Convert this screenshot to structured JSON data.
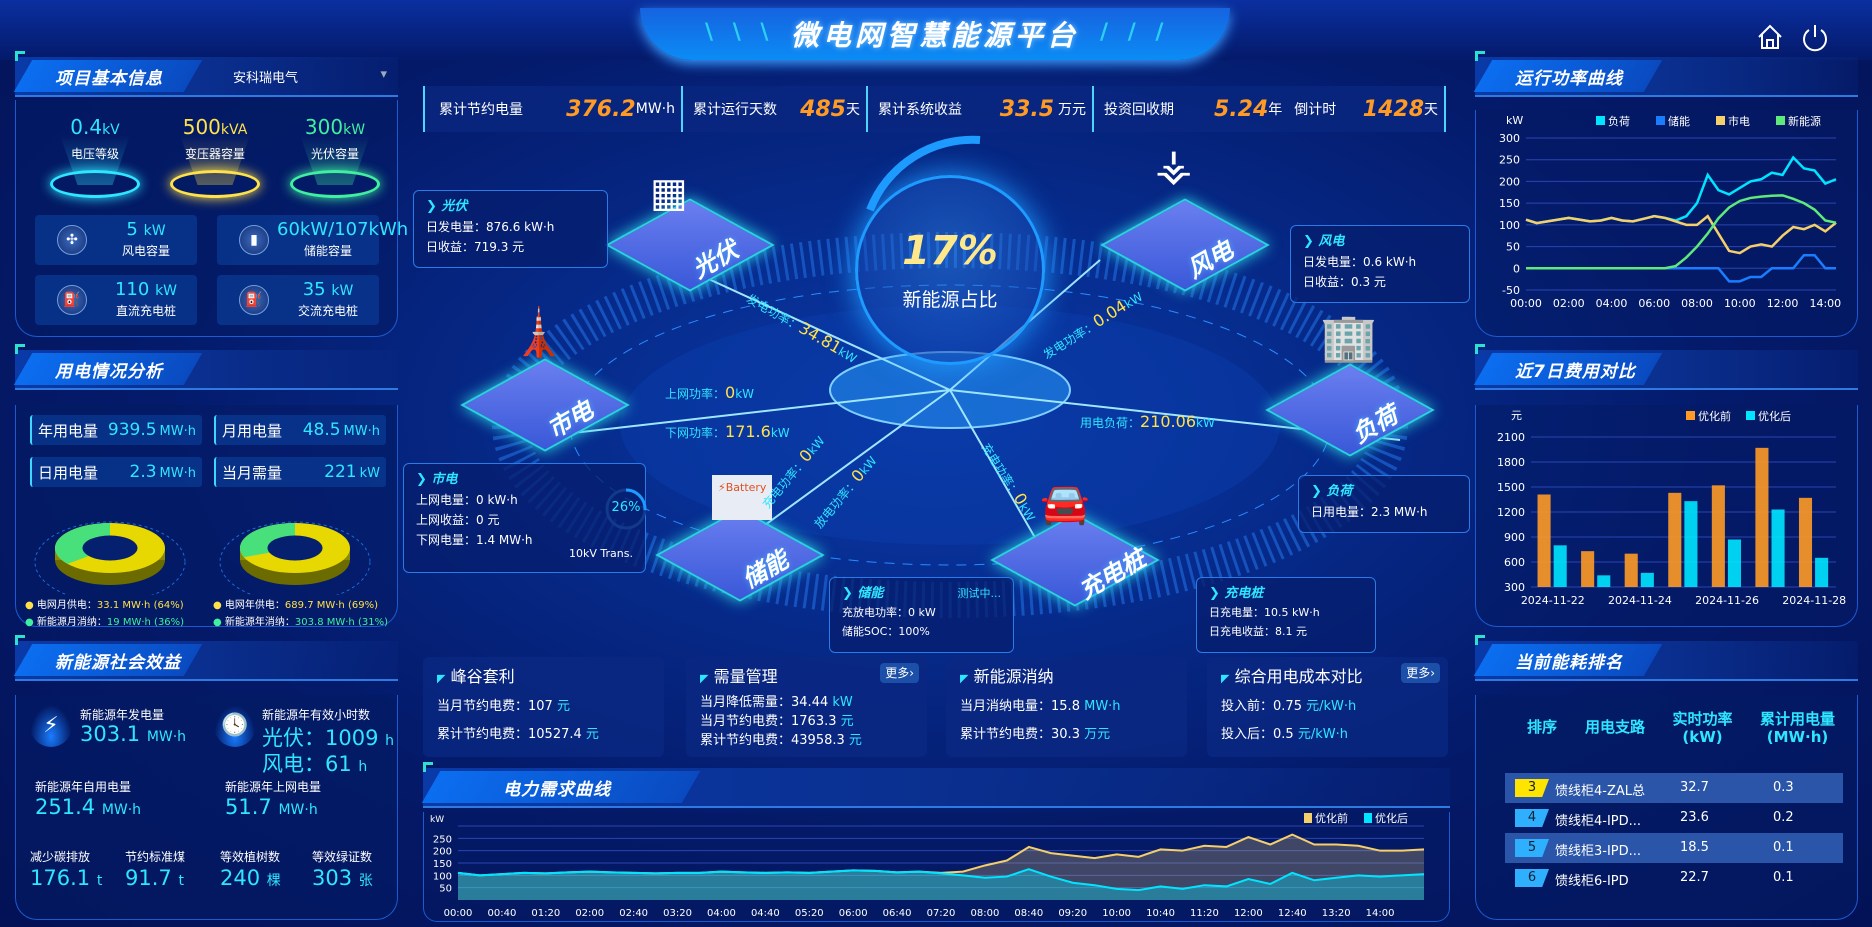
{
  "header": {
    "title": "微电网智慧能源平台",
    "home_icon": "home-icon",
    "power_icon": "power-icon"
  },
  "stats": [
    {
      "label": "累计节约电量",
      "value": "376.2",
      "unit": "MW·h"
    },
    {
      "label": "累计运行天数",
      "value": "485",
      "unit": "天"
    },
    {
      "label": "累计系统收益",
      "value": "33.5",
      "unit": "万元"
    },
    {
      "label": "投资回收期",
      "value": "5.24",
      "unit": "年"
    },
    {
      "label": "倒计时",
      "value": "1428",
      "unit": "天"
    }
  ],
  "project": {
    "title": "项目基本信息",
    "selector": "安科瑞电气",
    "tops": [
      {
        "value": "0.4",
        "unit": "kV",
        "label": "电压等级",
        "color": "#2ee6ff"
      },
      {
        "value": "500",
        "unit": "kVA",
        "label": "变压器容量",
        "color": "#ffe14a"
      },
      {
        "value": "300",
        "unit": "kW",
        "label": "光伏容量",
        "color": "#3ff0a0"
      }
    ],
    "caps": [
      {
        "value": "5",
        "unit": "kW",
        "label": "风电容量",
        "icon": "wind-turbine-icon"
      },
      {
        "value": "60kW/107kWh",
        "unit": "",
        "label": "储能容量",
        "icon": "battery-icon"
      },
      {
        "value": "110",
        "unit": "kW",
        "label": "直流充电桩",
        "icon": "charger-icon"
      },
      {
        "value": "35",
        "unit": "kW",
        "label": "交流充电桩",
        "icon": "charger-icon"
      }
    ]
  },
  "usage": {
    "title": "用电情况分析",
    "kvs": [
      {
        "label": "年用电量",
        "value": "939.5",
        "unit": "MW·h"
      },
      {
        "label": "月用电量",
        "value": "48.5",
        "unit": "MW·h"
      },
      {
        "label": "日用电量",
        "value": "2.3",
        "unit": "MW·h"
      },
      {
        "label": "当月需量",
        "value": "221",
        "unit": "kW"
      }
    ],
    "donuts": [
      {
        "grid_pct": 64,
        "new_pct": 36
      },
      {
        "grid_pct": 69,
        "new_pct": 31
      }
    ],
    "legend": [
      {
        "label": "电网月供电：",
        "value": "33.1 MW·h (64%)",
        "color": "#ffe14a"
      },
      {
        "label": "电网年供电：",
        "value": "689.7 MW·h (69%)",
        "color": "#ffe14a"
      },
      {
        "label": "新能源月消纳：",
        "value": "19 MW·h (36%)",
        "color": "#3ff0a0"
      },
      {
        "label": "新能源年消纳：",
        "value": "303.8 MW·h (31%)",
        "color": "#3ff0a0"
      }
    ]
  },
  "social": {
    "title": "新能源社会效益",
    "items": [
      {
        "label": "新能源年发电量",
        "value": "303.1",
        "unit": "MW·h"
      },
      {
        "label": "新能源年有效小时数",
        "value": "光伏：1009",
        "unit": "h",
        "value2": "风电：61",
        "unit2": "h"
      },
      {
        "label": "新能源年自用电量",
        "value": "251.4",
        "unit": "MW·h"
      },
      {
        "label": "新能源年上网电量",
        "value": "51.7",
        "unit": "MW·h"
      },
      {
        "label": "减少碳排放",
        "value": "176.1",
        "unit": "t"
      },
      {
        "label": "节约标准煤",
        "value": "91.7",
        "unit": "t"
      },
      {
        "label": "等效植树数",
        "value": "240",
        "unit": "棵"
      },
      {
        "label": "等效绿证数",
        "value": "303",
        "unit": "张"
      }
    ]
  },
  "center": {
    "ratio": "17%",
    "ratio_label": "新能源占比",
    "nodes": {
      "pv": "光伏",
      "wind": "风电",
      "grid": "市电",
      "load": "负荷",
      "storage": "储能",
      "charger": "充电桩"
    },
    "flows": {
      "pv": {
        "label": "发电功率：",
        "value": "34.81",
        "unit": "kW"
      },
      "grid_up": {
        "label": "上网功率：",
        "value": "0",
        "unit": "kW"
      },
      "grid_down": {
        "label": "下网功率：",
        "value": "171.6",
        "unit": "kW"
      },
      "st_charge": {
        "label": "充电功率：",
        "value": "0",
        "unit": "kW"
      },
      "st_discharge": {
        "label": "放电功率：",
        "value": "0",
        "unit": "kW"
      },
      "wind": {
        "label": "发电功率：",
        "value": "0.04",
        "unit": "kW"
      },
      "load": {
        "label": "用电负荷：",
        "value": "210.06",
        "unit": "kW"
      },
      "charger": {
        "label": "充电功率：",
        "value": "0",
        "unit": "kW"
      }
    },
    "transformer": {
      "pct": "26%",
      "label": "10kV Trans.",
      "fraction": 0.26
    },
    "boxes": {
      "pv": {
        "title": "光伏",
        "lines": [
          "日发电量：876.6 kW·h",
          "日收益：719.3 元"
        ]
      },
      "wind": {
        "title": "风电",
        "lines": [
          "日发电量：0.6 kW·h",
          "日收益：0.3 元"
        ]
      },
      "grid": {
        "title": "市电",
        "lines": [
          "上网电量：0 kW·h",
          "上网收益：0 元",
          "下网电量：1.4 MW·h"
        ]
      },
      "load": {
        "title": "负荷",
        "lines": [
          "日用电量：2.3 MW·h"
        ]
      },
      "storage": {
        "title": "储能",
        "status": "测试中...",
        "lines": [
          "充放电功率：0 kW",
          "储能SOC：100%"
        ]
      },
      "charger": {
        "title": "充电桩",
        "lines": [
          "日充电量：10.5 kW·h",
          "日充电收益：8.1 元"
        ]
      }
    }
  },
  "cards": [
    {
      "title": "峰谷套利",
      "rows": [
        {
          "label": "当月节约电费：",
          "value": "107",
          "unit": "元"
        },
        {
          "label": "累计节约电费：",
          "value": "10527.4",
          "unit": "元"
        }
      ]
    },
    {
      "title": "需量管理",
      "more": "更多›",
      "rows": [
        {
          "label": "当月降低需量：",
          "value": "34.44",
          "unit": "kW"
        },
        {
          "label": "当月节约电费：",
          "value": "1763.3",
          "unit": "元"
        },
        {
          "label": "累计节约电费：",
          "value": "43958.3",
          "unit": "元"
        }
      ]
    },
    {
      "title": "新能源消纳",
      "rows": [
        {
          "label": "当月消纳电量：",
          "value": "15.8",
          "unit": "MW·h"
        },
        {
          "label": "累计节约电费：",
          "value": "30.3",
          "unit": "万元"
        }
      ]
    },
    {
      "title": "综合用电成本对比",
      "more": "更多›",
      "rows": [
        {
          "label": "投入前：",
          "value": "0.75",
          "unit": "元/kW·h"
        },
        {
          "label": "投入后：",
          "value": "0.5",
          "unit": "元/kW·h"
        }
      ]
    }
  ],
  "ranking": {
    "title": "当前能耗排名",
    "headers": [
      "排序",
      "用电支路",
      "实时功率\n(kW)",
      "累计用电量\n(MW·h)"
    ],
    "rows": [
      {
        "rank": "3",
        "name": "馈线柜4-ZAL总",
        "power": "32.7",
        "energy": "0.3",
        "color": "#ffe400"
      },
      {
        "rank": "4",
        "name": "馈线柜4-IPD...",
        "power": "23.6",
        "energy": "0.2",
        "color": "#2fb0ff"
      },
      {
        "rank": "5",
        "name": "馈线柜3-IPD...",
        "power": "18.5",
        "energy": "0.1",
        "color": "#2fb0ff"
      },
      {
        "rank": "6",
        "name": "馈线柜6-IPD",
        "power": "22.7",
        "energy": "0.1",
        "color": "#2fb0ff"
      }
    ]
  },
  "chart_data": [
    {
      "id": "power",
      "title": "运行功率曲线",
      "type": "line",
      "ylabel": "kW",
      "ylim": [
        -50,
        300
      ],
      "yticks": [
        -50,
        0,
        50,
        100,
        150,
        200,
        250,
        300
      ],
      "xticks": [
        "00:00",
        "02:00",
        "04:00",
        "06:00",
        "08:00",
        "10:00",
        "12:00",
        "14:00"
      ],
      "legend": "top-center",
      "grid": true,
      "x": [
        "00:00",
        "00:30",
        "01:00",
        "01:30",
        "02:00",
        "02:30",
        "03:00",
        "03:30",
        "04:00",
        "04:30",
        "05:00",
        "05:30",
        "06:00",
        "06:30",
        "07:00",
        "07:30",
        "08:00",
        "08:30",
        "09:00",
        "09:30",
        "10:00",
        "10:30",
        "11:00",
        "11:30",
        "12:00",
        "12:30",
        "13:00",
        "13:30",
        "14:00",
        "14:30"
      ],
      "series": [
        {
          "name": "负荷",
          "color": "#00e5ff",
          "values": [
            112,
            104,
            108,
            112,
            116,
            112,
            108,
            110,
            116,
            110,
            108,
            114,
            120,
            116,
            110,
            120,
            150,
            215,
            180,
            170,
            185,
            200,
            205,
            220,
            215,
            255,
            230,
            225,
            195,
            205
          ]
        },
        {
          "name": "储能",
          "color": "#1a7dff",
          "values": [
            0,
            0,
            0,
            0,
            0,
            0,
            0,
            0,
            0,
            0,
            0,
            0,
            0,
            0,
            0,
            0,
            0,
            0,
            0,
            -30,
            -30,
            -20,
            -20,
            0,
            0,
            0,
            30,
            30,
            0,
            0
          ]
        },
        {
          "name": "市电",
          "color": "#f5cf6a",
          "values": [
            112,
            104,
            108,
            112,
            116,
            112,
            108,
            110,
            116,
            110,
            108,
            114,
            120,
            116,
            108,
            100,
            100,
            120,
            80,
            40,
            35,
            50,
            55,
            50,
            75,
            95,
            90,
            100,
            85,
            105
          ]
        },
        {
          "name": "新能源",
          "color": "#5eea7a",
          "values": [
            0,
            0,
            0,
            0,
            0,
            0,
            0,
            0,
            0,
            0,
            0,
            0,
            0,
            0,
            5,
            25,
            50,
            80,
            115,
            140,
            155,
            162,
            165,
            167,
            168,
            160,
            150,
            135,
            110,
            105
          ]
        }
      ]
    },
    {
      "id": "cost",
      "title": "近7日费用对比",
      "type": "bar",
      "ylabel": "元",
      "ylim": [
        300,
        2100
      ],
      "yticks": [
        300,
        600,
        900,
        1200,
        1500,
        1800,
        2100
      ],
      "legend": "top-right",
      "grid": true,
      "categories": [
        "2024-11-22",
        "2024-11-23",
        "2024-11-24",
        "2024-11-25",
        "2024-11-26",
        "2024-11-27",
        "2024-11-28"
      ],
      "xticks": [
        "2024-11-22",
        "2024-11-24",
        "2024-11-26",
        "2024-11-28"
      ],
      "series": [
        {
          "name": "优化前",
          "color": "#ff9b25",
          "values": [
            1410,
            730,
            700,
            1430,
            1520,
            1970,
            1370
          ]
        },
        {
          "name": "优化后",
          "color": "#00e5ff",
          "values": [
            800,
            440,
            470,
            1330,
            870,
            1230,
            650
          ]
        }
      ]
    },
    {
      "id": "demand",
      "title": "电力需求曲线",
      "type": "area",
      "ylabel": "kW",
      "ylim": [
        0,
        300
      ],
      "yticks": [
        50,
        100,
        150,
        200,
        250
      ],
      "legend": "top-right",
      "grid": true,
      "xticks": [
        "00:00",
        "00:40",
        "01:20",
        "02:00",
        "02:40",
        "03:20",
        "04:00",
        "04:40",
        "05:20",
        "06:00",
        "06:40",
        "07:20",
        "08:00",
        "08:40",
        "09:20",
        "10:00",
        "10:40",
        "11:20",
        "12:00",
        "12:40",
        "13:20",
        "14:00"
      ],
      "x_start": "00:00",
      "x_step_min": 20,
      "series": [
        {
          "name": "优化前",
          "color": "#f5cf6a",
          "values": [
            110,
            100,
            105,
            110,
            108,
            112,
            115,
            112,
            110,
            108,
            110,
            110,
            115,
            112,
            110,
            112,
            110,
            115,
            120,
            118,
            112,
            115,
            110,
            115,
            140,
            160,
            215,
            190,
            180,
            170,
            185,
            175,
            205,
            200,
            220,
            215,
            255,
            225,
            265,
            225,
            225,
            220,
            200,
            200,
            205
          ]
        },
        {
          "name": "优化后",
          "color": "#00e5ff",
          "values": [
            110,
            100,
            105,
            110,
            108,
            112,
            115,
            112,
            110,
            108,
            110,
            110,
            115,
            112,
            110,
            112,
            110,
            115,
            120,
            118,
            112,
            115,
            108,
            100,
            90,
            95,
            125,
            95,
            70,
            60,
            45,
            40,
            55,
            45,
            60,
            55,
            85,
            65,
            110,
            80,
            90,
            100,
            95,
            100,
            105
          ]
        }
      ]
    }
  ]
}
